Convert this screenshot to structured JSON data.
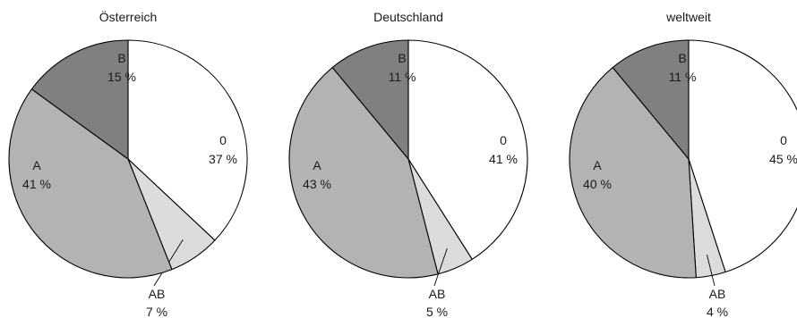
{
  "chart_data": [
    {
      "type": "pie",
      "title": "Österreich",
      "slices": [
        {
          "label": "0",
          "value": 37,
          "value_text": "37 %"
        },
        {
          "label": "AB",
          "value": 7,
          "value_text": "7 %"
        },
        {
          "label": "A",
          "value": 41,
          "value_text": "41 %"
        },
        {
          "label": "B",
          "value": 15,
          "value_text": "15 %"
        }
      ]
    },
    {
      "type": "pie",
      "title": "Deutschland",
      "slices": [
        {
          "label": "0",
          "value": 41,
          "value_text": "41 %"
        },
        {
          "label": "AB",
          "value": 5,
          "value_text": "5 %"
        },
        {
          "label": "A",
          "value": 43,
          "value_text": "43 %"
        },
        {
          "label": "B",
          "value": 11,
          "value_text": "11 %"
        }
      ]
    },
    {
      "type": "pie",
      "title": "weltweit",
      "slices": [
        {
          "label": "0",
          "value": 45,
          "value_text": "45 %"
        },
        {
          "label": "AB",
          "value": 4,
          "value_text": "4 %"
        },
        {
          "label": "A",
          "value": 40,
          "value_text": "40 %"
        },
        {
          "label": "B",
          "value": 11,
          "value_text": "11 %"
        }
      ]
    }
  ],
  "colors": {
    "0": "#ffffff",
    "AB": "#dcdcdc",
    "A": "#b3b3b3",
    "B": "#808080",
    "stroke": "#000000"
  }
}
